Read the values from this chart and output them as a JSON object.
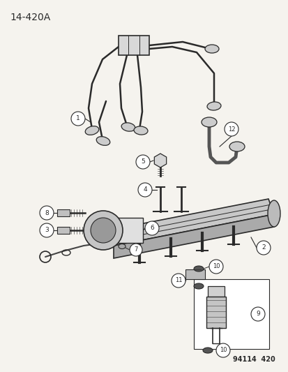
{
  "title": "14-420A",
  "part_number_label": "94114  420",
  "background_color": "#f5f3ee",
  "line_color": "#2a2a2a",
  "text_color": "#2a2a2a",
  "fig_width": 4.14,
  "fig_height": 5.33,
  "dpi": 100
}
